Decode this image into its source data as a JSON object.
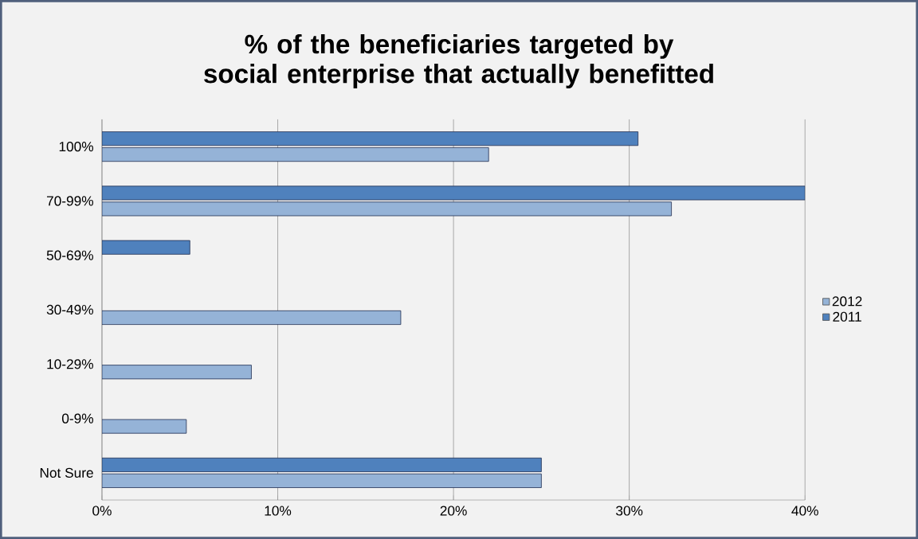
{
  "chart_data": {
    "type": "bar",
    "orientation": "horizontal",
    "title": "% of the beneficiaries targeted by social enterprise that actually benefitted",
    "categories": [
      "100%",
      "70-99%",
      "50-69%",
      "30-49%",
      "10-29%",
      "0-9%",
      "Not Sure"
    ],
    "series": [
      {
        "name": "2012",
        "color": "#95b3d7",
        "values": [
          22.0,
          32.4,
          null,
          17.0,
          8.5,
          4.8,
          25.0
        ]
      },
      {
        "name": "2011",
        "color": "#4f81bd",
        "values": [
          30.5,
          40.0,
          5.0,
          null,
          null,
          null,
          25.0
        ]
      }
    ],
    "xlim": [
      0,
      40
    ],
    "xticks": [
      {
        "value": 0,
        "label": "0%"
      },
      {
        "value": 10,
        "label": "10%"
      },
      {
        "value": 20,
        "label": "20%"
      },
      {
        "value": 30,
        "label": "30%"
      },
      {
        "value": 40,
        "label": "40%"
      }
    ],
    "grid": "x",
    "legend": "right"
  }
}
